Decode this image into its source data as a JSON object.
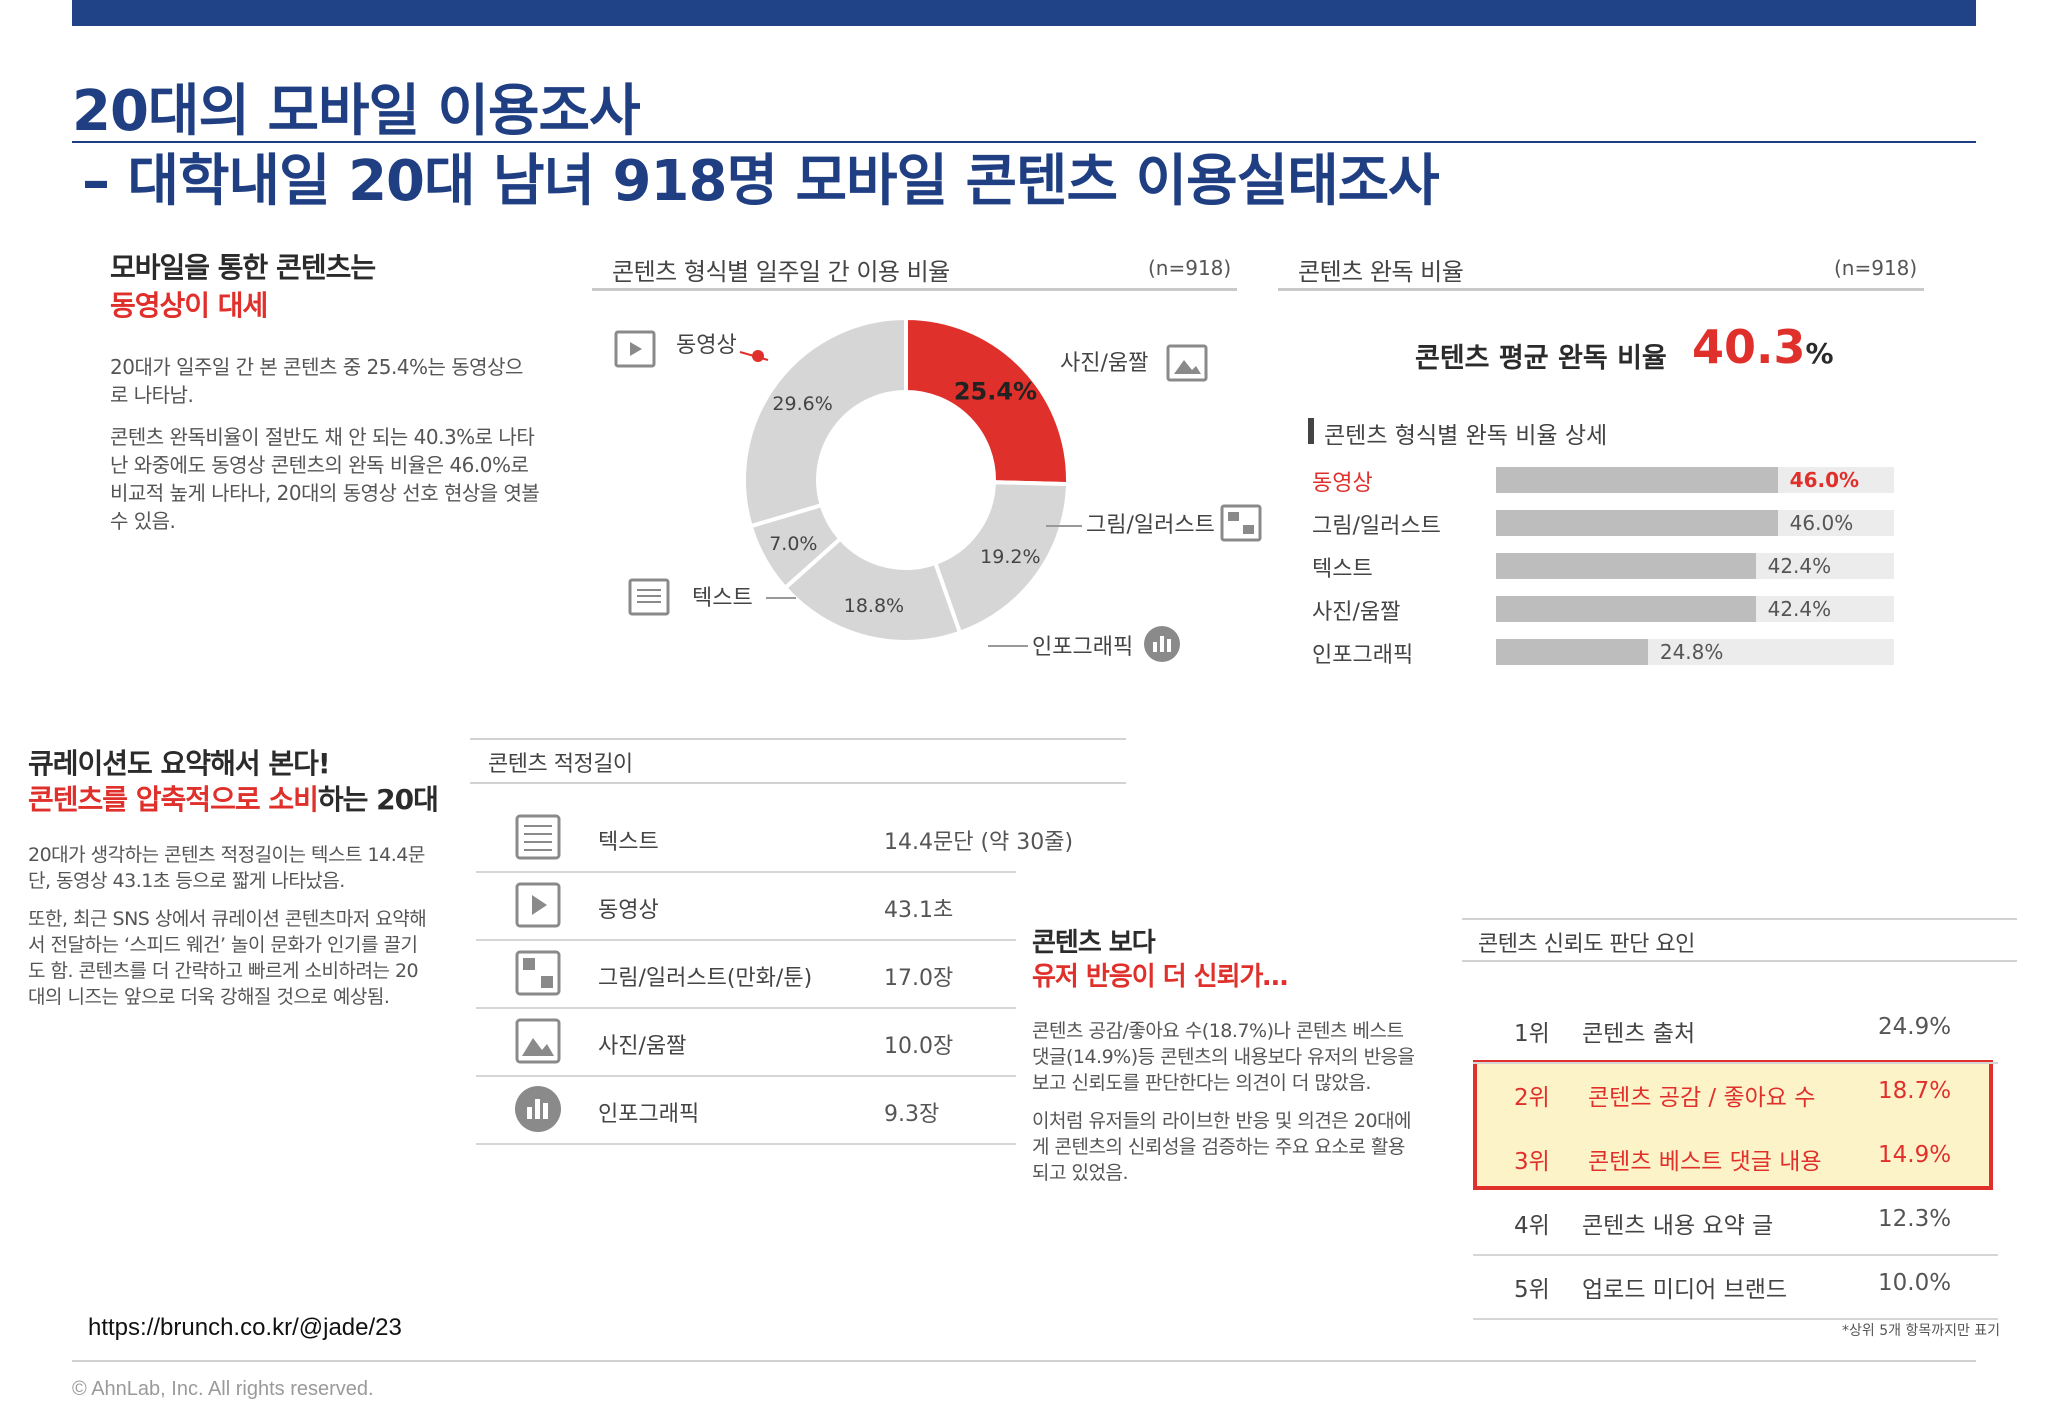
{
  "slide": {
    "title_line1": "20대의 모바일 이용조사",
    "title_line2": "– 대학내일 20대 남녀 918명 모바일 콘텐츠 이용실태조사",
    "url": "https://brunch.co.kr/@jade/23",
    "footer": "© AhnLab, Inc. All rights reserved.",
    "bar_color": "#1f4386",
    "accent_red": "#e0302b"
  },
  "section1": {
    "head_black": "모바일을 통한 콘텐츠는",
    "head_red": "동영상이 대세",
    "para1": "20대가 일주일 간 본 콘텐츠 중 25.4%는 동영상으로 나타남.",
    "para2": "콘텐츠 완독비율이 절반도 채 안 되는 40.3%로 나타난 와중에도 동영상 콘텐츠의 완독 비율은 46.0%로 비교적 높게 나타나, 20대의 동영상 선호 현상을 엿볼 수 있음."
  },
  "section2": {
    "head_black": "큐레이션도 요약해서 본다!",
    "head_red": "콘텐츠를 압축적으로 소비",
    "head_tail": "하는 20대",
    "para1": "20대가 생각하는 콘텐츠 적정길이는 텍스트 14.4문단, 동영상 43.1초 등으로 짧게 나타났음.",
    "para2": "또한, 최근 SNS 상에서 큐레이션 콘텐츠마저 요약해서 전달하는 ‘스피드 웨건’ 놀이 문화가 인기를 끌기도 함. 콘텐츠를 더 간략하고 빠르게 소비하려는 20대의 니즈는 앞으로 더욱 강해질 것으로 예상됨."
  },
  "section3": {
    "head_black": "콘텐츠 보다",
    "head_red": "유저 반응이 더 신뢰가…",
    "para1": "콘텐츠 공감/좋아요 수(18.7%)나 콘텐츠 베스트 댓글(14.9%)등 콘텐츠의 내용보다 유저의 반응을 보고 신뢰도를 판단한다는 의견이 더 많았음.",
    "para2": "이처럼 유저들의 라이브한 반응 및 의견은 20대에게 콘텐츠의 신뢰성을 검증하는 주요 요소로 활용되고 있었음."
  },
  "chart_data": [
    {
      "type": "pie",
      "title": "콘텐츠 형식별 일주일 간 이용 비율",
      "n": "(n=918)",
      "categories": [
        "동영상",
        "사진/움짤",
        "그림/일러스트",
        "인포그래픽",
        "텍스트"
      ],
      "values": [
        25.4,
        19.2,
        18.8,
        7.0,
        29.6
      ],
      "value_labels": [
        "25.4%",
        "19.2%",
        "18.8%",
        "7.0%",
        "29.6%"
      ],
      "highlight": "동영상",
      "colors": {
        "highlight": "#e0302b",
        "other": "#d6d6d6"
      },
      "icons": [
        "video-icon",
        "image-icon",
        "illustration-icon",
        "infographic-icon",
        "document-icon"
      ]
    },
    {
      "type": "bar",
      "title": "콘텐츠 완독 비율",
      "n": "(n=918)",
      "average_label": "콘텐츠 평균 완독 비율",
      "average_value": "40.3",
      "average_unit": "%",
      "subtitle": "콘텐츠 형식별 완독 비율 상세",
      "categories": [
        "동영상",
        "그림/일러스트",
        "텍스트",
        "사진/움짤",
        "인포그래픽"
      ],
      "values": [
        46.0,
        46.0,
        42.4,
        42.4,
        24.8
      ],
      "value_labels": [
        "46.0%",
        "46.0%",
        "42.4%",
        "42.4%",
        "24.8%"
      ],
      "xlim": [
        0,
        65
      ],
      "highlight": "동영상"
    },
    {
      "type": "table",
      "title": "콘텐츠 적정길이",
      "rows": [
        {
          "name": "텍스트",
          "value": "14.4문단 (약 30줄)",
          "icon": "document-icon"
        },
        {
          "name": "동영상",
          "value": "43.1초",
          "icon": "video-icon"
        },
        {
          "name": "그림/일러스트(만화/툰)",
          "value": "17.0장",
          "icon": "illustration-icon"
        },
        {
          "name": "사진/움짤",
          "value": "10.0장",
          "icon": "image-icon"
        },
        {
          "name": "인포그래픽",
          "value": "9.3장",
          "icon": "infographic-icon"
        }
      ]
    },
    {
      "type": "table",
      "title": "콘텐츠 신뢰도 판단 요인",
      "rows": [
        {
          "rank": "1위",
          "name": "콘텐츠 출처",
          "value": "24.9%"
        },
        {
          "rank": "2위",
          "name": "콘텐츠 공감 / 좋아요 수",
          "value": "18.7%"
        },
        {
          "rank": "3위",
          "name": "콘텐츠 베스트 댓글 내용",
          "value": "14.9%"
        },
        {
          "rank": "4위",
          "name": "콘텐츠 내용 요약 글",
          "value": "12.3%"
        },
        {
          "rank": "5위",
          "name": "업로드 미디어 브랜드",
          "value": "10.0%"
        }
      ],
      "highlighted_ranks": [
        "2위",
        "3위"
      ],
      "footnote": "*상위 5개 항목까지만 표기"
    }
  ]
}
